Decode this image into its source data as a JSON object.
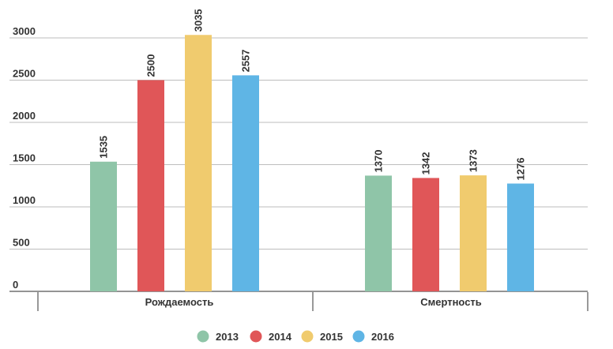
{
  "chart_data": {
    "type": "bar",
    "categories": [
      "Рождаемость",
      "Смертность"
    ],
    "series": [
      {
        "name": "2013",
        "values": [
          1535,
          1370
        ],
        "color": "#8fc5a8"
      },
      {
        "name": "2014",
        "values": [
          2500,
          1342
        ],
        "color": "#e05658"
      },
      {
        "name": "2015",
        "values": [
          3035,
          1373
        ],
        "color": "#f0cb6e"
      },
      {
        "name": "2016",
        "values": [
          2557,
          1276
        ],
        "color": "#5fb5e5"
      }
    ],
    "y_ticks": [
      "0",
      "500",
      "1000",
      "1500",
      "2000",
      "2500",
      "3000"
    ],
    "ylim": [
      0,
      3000
    ],
    "grid": true,
    "legend_position": "bottom-center",
    "title": "",
    "xlabel": "",
    "ylabel": ""
  }
}
